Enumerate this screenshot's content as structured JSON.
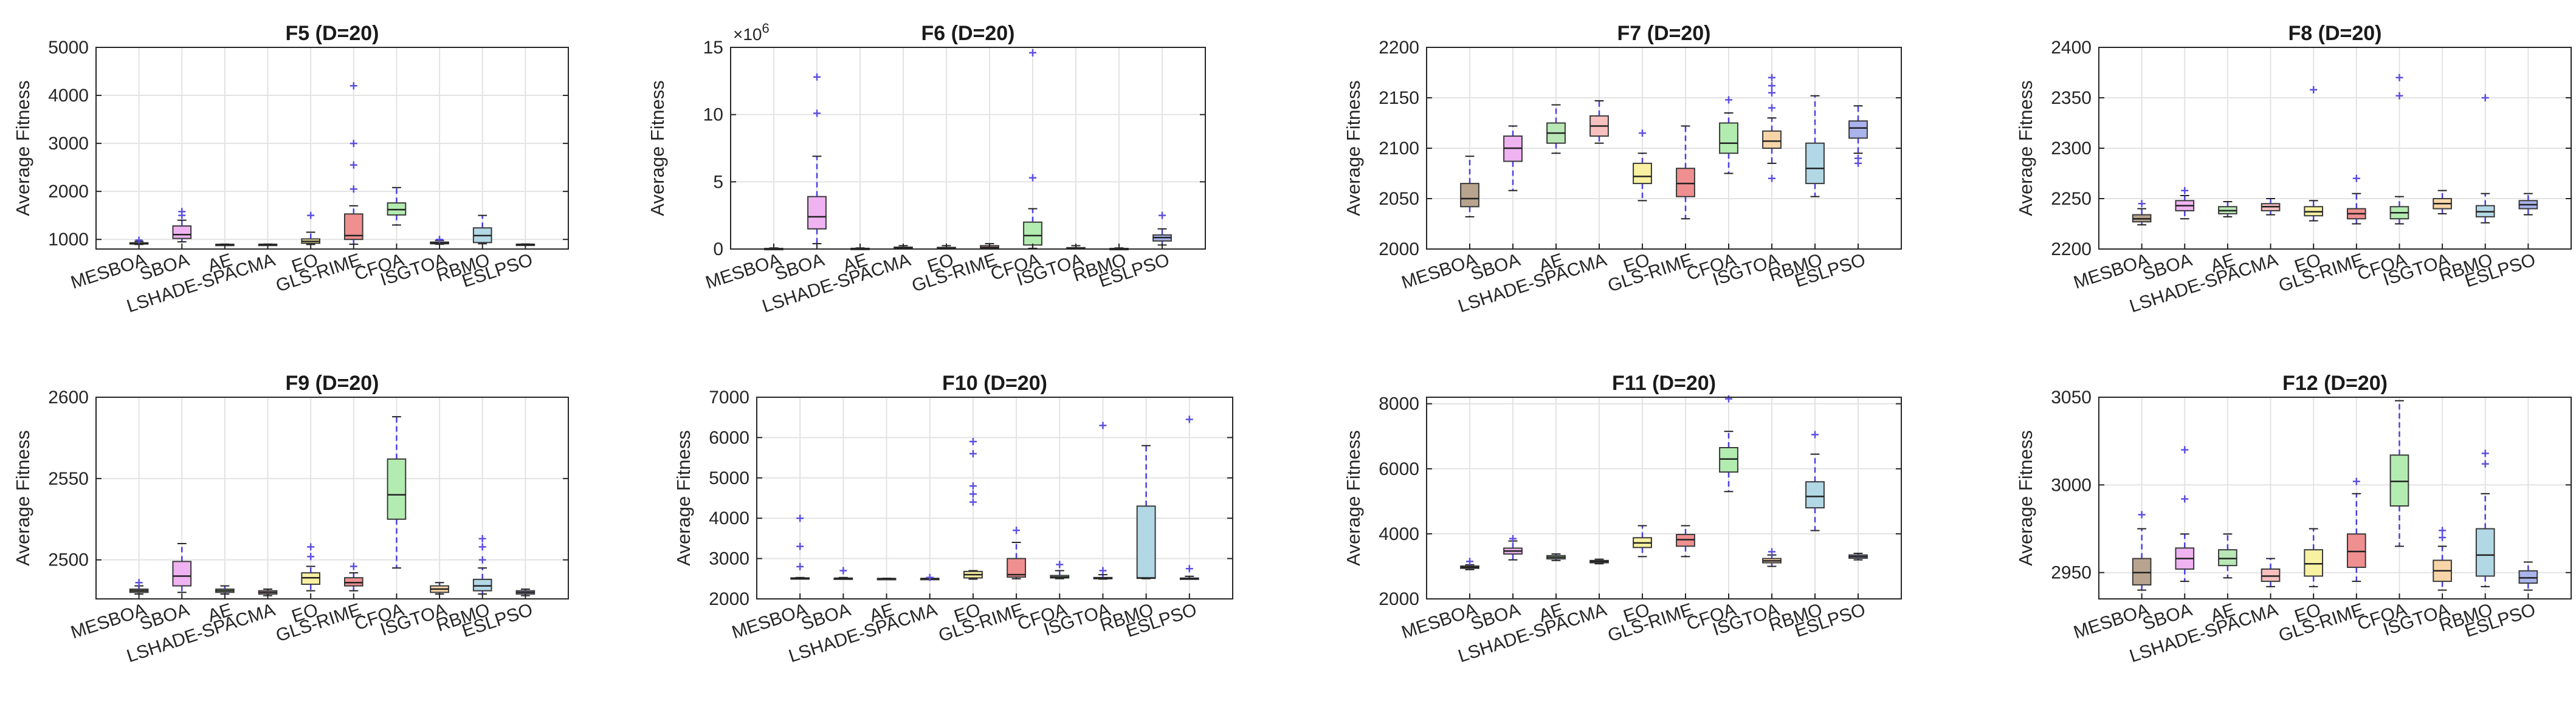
{
  "chart_data": [
    {
      "type": "box",
      "title": "F5 (D=20)",
      "ylabel": "Average Fitness",
      "categories": [
        "MESBOA",
        "SBOA",
        "AE",
        "LSHADE-SPACMA",
        "EO",
        "GLS-RIME",
        "CFOA",
        "ISGTOA",
        "RBMO",
        "ESLPSO"
      ],
      "ylim": [
        800,
        5000
      ],
      "yticks": [
        1000,
        2000,
        3000,
        4000,
        5000
      ],
      "ytick_labels": [
        "1000",
        "2000",
        "3000",
        "4000",
        "5000"
      ],
      "boxes": [
        {
          "q1": 905,
          "median": 915,
          "q3": 930,
          "lo": 895,
          "hi": 960,
          "out": [
            985
          ]
        },
        {
          "q1": 1020,
          "median": 1100,
          "q3": 1280,
          "lo": 950,
          "hi": 1400,
          "out": [
            1500,
            1580
          ]
        },
        {
          "q1": 890,
          "median": 893,
          "q3": 897,
          "lo": 888,
          "hi": 902,
          "out": []
        },
        {
          "q1": 892,
          "median": 895,
          "q3": 898,
          "lo": 890,
          "hi": 903,
          "out": []
        },
        {
          "q1": 920,
          "median": 960,
          "q3": 1010,
          "lo": 895,
          "hi": 1150,
          "out": [
            1500
          ]
        },
        {
          "q1": 1000,
          "median": 1080,
          "q3": 1530,
          "lo": 900,
          "hi": 1700,
          "out": [
            2050,
            2550,
            3000,
            4200
          ]
        },
        {
          "q1": 1510,
          "median": 1620,
          "q3": 1760,
          "lo": 1300,
          "hi": 2080,
          "out": []
        },
        {
          "q1": 910,
          "median": 925,
          "q3": 945,
          "lo": 900,
          "hi": 980,
          "out": [
            1000
          ]
        },
        {
          "q1": 935,
          "median": 1080,
          "q3": 1240,
          "lo": 910,
          "hi": 1500,
          "out": []
        },
        {
          "q1": 895,
          "median": 897,
          "q3": 900,
          "lo": 892,
          "hi": 905,
          "out": []
        }
      ]
    },
    {
      "type": "box",
      "title": "F6 (D=20)",
      "ylabel": "Average Fitness",
      "multiplier": "×10^6",
      "categories": [
        "MESBOA",
        "SBOA",
        "AE",
        "LSHADE-SPACMA",
        "EO",
        "GLS-RIME",
        "CFOA",
        "ISGTOA",
        "RBMO",
        "ESLPSO"
      ],
      "ylim": [
        0,
        15
      ],
      "yticks": [
        0,
        5,
        10,
        15
      ],
      "ytick_labels": [
        "0",
        "5",
        "10",
        "15"
      ],
      "boxes": [
        {
          "q1": 0.01,
          "median": 0.02,
          "q3": 0.04,
          "lo": 0.0,
          "hi": 0.08,
          "out": []
        },
        {
          "q1": 1.5,
          "median": 2.4,
          "q3": 3.9,
          "lo": 0.4,
          "hi": 6.9,
          "out": [
            10.1,
            12.8
          ]
        },
        {
          "q1": 0.02,
          "median": 0.03,
          "q3": 0.05,
          "lo": 0.0,
          "hi": 0.08,
          "out": []
        },
        {
          "q1": 0.04,
          "median": 0.08,
          "q3": 0.14,
          "lo": 0.0,
          "hi": 0.25,
          "out": []
        },
        {
          "q1": 0.03,
          "median": 0.06,
          "q3": 0.12,
          "lo": 0.0,
          "hi": 0.25,
          "out": []
        },
        {
          "q1": 0.05,
          "median": 0.12,
          "q3": 0.25,
          "lo": 0.0,
          "hi": 0.4,
          "out": []
        },
        {
          "q1": 0.3,
          "median": 1.0,
          "q3": 2.0,
          "lo": 0.05,
          "hi": 3.0,
          "out": [
            5.3,
            14.6
          ]
        },
        {
          "q1": 0.02,
          "median": 0.05,
          "q3": 0.1,
          "lo": 0.0,
          "hi": 0.25,
          "out": []
        },
        {
          "q1": 0.01,
          "median": 0.02,
          "q3": 0.04,
          "lo": 0.0,
          "hi": 0.08,
          "out": []
        },
        {
          "q1": 0.6,
          "median": 0.85,
          "q3": 1.05,
          "lo": 0.3,
          "hi": 1.5,
          "out": [
            2.5
          ]
        }
      ]
    },
    {
      "type": "box",
      "title": "F7 (D=20)",
      "ylabel": "Average Fitness",
      "categories": [
        "MESBOA",
        "SBOA",
        "AE",
        "LSHADE-SPACMA",
        "EO",
        "GLS-RIME",
        "CFOA",
        "ISGTOA",
        "RBMO",
        "ESLPSO"
      ],
      "ylim": [
        2000,
        2200
      ],
      "yticks": [
        2000,
        2050,
        2100,
        2150,
        2200
      ],
      "ytick_labels": [
        "2000",
        "2050",
        "2100",
        "2150",
        "2200"
      ],
      "boxes": [
        {
          "q1": 2042,
          "median": 2050,
          "q3": 2065,
          "lo": 2032,
          "hi": 2092,
          "out": []
        },
        {
          "q1": 2087,
          "median": 2100,
          "q3": 2112,
          "lo": 2058,
          "hi": 2122,
          "out": []
        },
        {
          "q1": 2105,
          "median": 2115,
          "q3": 2125,
          "lo": 2095,
          "hi": 2143,
          "out": []
        },
        {
          "q1": 2112,
          "median": 2122,
          "q3": 2132,
          "lo": 2105,
          "hi": 2147,
          "out": []
        },
        {
          "q1": 2065,
          "median": 2072,
          "q3": 2085,
          "lo": 2048,
          "hi": 2095,
          "out": [
            2115
          ]
        },
        {
          "q1": 2052,
          "median": 2065,
          "q3": 2080,
          "lo": 2030,
          "hi": 2122,
          "out": []
        },
        {
          "q1": 2095,
          "median": 2105,
          "q3": 2125,
          "lo": 2075,
          "hi": 2135,
          "out": [
            2148
          ]
        },
        {
          "q1": 2100,
          "median": 2107,
          "q3": 2117,
          "lo": 2085,
          "hi": 2130,
          "out": [
            2070,
            2140,
            2155,
            2162,
            2170
          ]
        },
        {
          "q1": 2065,
          "median": 2080,
          "q3": 2105,
          "lo": 2052,
          "hi": 2152,
          "out": []
        },
        {
          "q1": 2110,
          "median": 2120,
          "q3": 2127,
          "lo": 2095,
          "hi": 2142,
          "out": [
            2085,
            2090
          ]
        }
      ]
    },
    {
      "type": "box",
      "title": "F8 (D=20)",
      "ylabel": "Average Fitness",
      "categories": [
        "MESBOA",
        "SBOA",
        "AE",
        "LSHADE-SPACMA",
        "EO",
        "GLS-RIME",
        "CFOA",
        "ISGTOA",
        "RBMO",
        "ESLPSO"
      ],
      "ylim": [
        2200,
        2400
      ],
      "yticks": [
        2200,
        2250,
        2300,
        2350,
        2400
      ],
      "ytick_labels": [
        "2200",
        "2250",
        "2300",
        "2350",
        "2400"
      ],
      "boxes": [
        {
          "q1": 2227,
          "median": 2230,
          "q3": 2234,
          "lo": 2224,
          "hi": 2240,
          "out": [
            2245
          ]
        },
        {
          "q1": 2238,
          "median": 2243,
          "q3": 2248,
          "lo": 2230,
          "hi": 2253,
          "out": [
            2258
          ]
        },
        {
          "q1": 2235,
          "median": 2238,
          "q3": 2242,
          "lo": 2232,
          "hi": 2247,
          "out": []
        },
        {
          "q1": 2238,
          "median": 2242,
          "q3": 2245,
          "lo": 2234,
          "hi": 2250,
          "out": []
        },
        {
          "q1": 2233,
          "median": 2237,
          "q3": 2242,
          "lo": 2228,
          "hi": 2248,
          "out": [
            2358
          ]
        },
        {
          "q1": 2230,
          "median": 2235,
          "q3": 2240,
          "lo": 2225,
          "hi": 2255,
          "out": [
            2270
          ]
        },
        {
          "q1": 2230,
          "median": 2236,
          "q3": 2242,
          "lo": 2225,
          "hi": 2252,
          "out": [
            2352,
            2370
          ]
        },
        {
          "q1": 2240,
          "median": 2245,
          "q3": 2250,
          "lo": 2235,
          "hi": 2258,
          "out": []
        },
        {
          "q1": 2232,
          "median": 2237,
          "q3": 2243,
          "lo": 2226,
          "hi": 2255,
          "out": [
            2350
          ]
        },
        {
          "q1": 2240,
          "median": 2244,
          "q3": 2248,
          "lo": 2234,
          "hi": 2255,
          "out": []
        }
      ]
    },
    {
      "type": "box",
      "title": "F9 (D=20)",
      "ylabel": "Average Fitness",
      "categories": [
        "MESBOA",
        "SBOA",
        "AE",
        "LSHADE-SPACMA",
        "EO",
        "GLS-RIME",
        "CFOA",
        "ISGTOA",
        "RBMO",
        "ESLPSO"
      ],
      "ylim": [
        2476,
        2600
      ],
      "yticks": [
        2500,
        2550,
        2600
      ],
      "ytick_labels": [
        "2500",
        "2550",
        "2600"
      ],
      "boxes": [
        {
          "q1": 2480,
          "median": 2481,
          "q3": 2482,
          "lo": 2479,
          "hi": 2484,
          "out": [
            2486
          ]
        },
        {
          "q1": 2484,
          "median": 2490,
          "q3": 2499,
          "lo": 2480,
          "hi": 2510,
          "out": []
        },
        {
          "q1": 2480,
          "median": 2481,
          "q3": 2482,
          "lo": 2479,
          "hi": 2484,
          "out": []
        },
        {
          "q1": 2479,
          "median": 2480,
          "q3": 2481,
          "lo": 2478,
          "hi": 2482,
          "out": []
        },
        {
          "q1": 2485,
          "median": 2489,
          "q3": 2492,
          "lo": 2481,
          "hi": 2496,
          "out": [
            2502,
            2508
          ]
        },
        {
          "q1": 2484,
          "median": 2486,
          "q3": 2489,
          "lo": 2481,
          "hi": 2492,
          "out": [
            2496
          ]
        },
        {
          "q1": 2525,
          "median": 2540,
          "q3": 2562,
          "lo": 2495,
          "hi": 2588,
          "out": []
        },
        {
          "q1": 2480,
          "median": 2482,
          "q3": 2484,
          "lo": 2479,
          "hi": 2486,
          "out": []
        },
        {
          "q1": 2481,
          "median": 2484,
          "q3": 2488,
          "lo": 2479,
          "hi": 2495,
          "out": [
            2500,
            2508,
            2513
          ]
        },
        {
          "q1": 2479,
          "median": 2480,
          "q3": 2481,
          "lo": 2478,
          "hi": 2482,
          "out": []
        }
      ]
    },
    {
      "type": "box",
      "title": "F10 (D=20)",
      "ylabel": "Average Fitness",
      "categories": [
        "MESBOA",
        "SBOA",
        "AE",
        "LSHADE-SPACMA",
        "EO",
        "GLS-RIME",
        "CFOA",
        "ISGTOA",
        "RBMO",
        "ESLPSO"
      ],
      "ylim": [
        2000,
        7000
      ],
      "yticks": [
        2000,
        3000,
        4000,
        5000,
        6000,
        7000
      ],
      "ytick_labels": [
        "2000",
        "3000",
        "4000",
        "5000",
        "6000",
        "7000"
      ],
      "boxes": [
        {
          "q1": 2500,
          "median": 2510,
          "q3": 2520,
          "lo": 2490,
          "hi": 2530,
          "out": [
            2800,
            3300,
            4000
          ]
        },
        {
          "q1": 2500,
          "median": 2505,
          "q3": 2515,
          "lo": 2490,
          "hi": 2530,
          "out": [
            2700
          ]
        },
        {
          "q1": 2500,
          "median": 2502,
          "q3": 2505,
          "lo": 2495,
          "hi": 2510,
          "out": []
        },
        {
          "q1": 2500,
          "median": 2503,
          "q3": 2506,
          "lo": 2495,
          "hi": 2512,
          "out": [
            2530
          ]
        },
        {
          "q1": 2520,
          "median": 2600,
          "q3": 2680,
          "lo": 2490,
          "hi": 2700,
          "out": [
            4400,
            4600,
            4800,
            5600,
            5900
          ]
        },
        {
          "q1": 2540,
          "median": 2600,
          "q3": 3000,
          "lo": 2500,
          "hi": 3400,
          "out": [
            3700
          ]
        },
        {
          "q1": 2520,
          "median": 2540,
          "q3": 2580,
          "lo": 2500,
          "hi": 2700,
          "out": [
            2850
          ]
        },
        {
          "q1": 2500,
          "median": 2510,
          "q3": 2530,
          "lo": 2490,
          "hi": 2600,
          "out": [
            2700,
            6300
          ]
        },
        {
          "q1": 2510,
          "median": 2520,
          "q3": 4300,
          "lo": 2500,
          "hi": 5800,
          "out": []
        },
        {
          "q1": 2500,
          "median": 2505,
          "q3": 2515,
          "lo": 2490,
          "hi": 2560,
          "out": [
            2750,
            6450
          ]
        }
      ]
    },
    {
      "type": "box",
      "title": "F11 (D=20)",
      "ylabel": "Average Fitness",
      "categories": [
        "MESBOA",
        "SBOA",
        "AE",
        "LSHADE-SPACMA",
        "EO",
        "GLS-RIME",
        "CFOA",
        "ISGTOA",
        "RBMO",
        "ESLPSO"
      ],
      "ylim": [
        2000,
        8200
      ],
      "yticks": [
        2000,
        4000,
        6000,
        8000
      ],
      "ytick_labels": [
        "2000",
        "4000",
        "6000",
        "8000"
      ],
      "boxes": [
        {
          "q1": 2940,
          "median": 2970,
          "q3": 3010,
          "lo": 2900,
          "hi": 3050,
          "out": [
            3150
          ]
        },
        {
          "q1": 3380,
          "median": 3470,
          "q3": 3560,
          "lo": 3200,
          "hi": 3780,
          "out": [
            3850
          ]
        },
        {
          "q1": 3230,
          "median": 3280,
          "q3": 3330,
          "lo": 3180,
          "hi": 3380,
          "out": []
        },
        {
          "q1": 3110,
          "median": 3150,
          "q3": 3180,
          "lo": 3080,
          "hi": 3220,
          "out": []
        },
        {
          "q1": 3580,
          "median": 3720,
          "q3": 3880,
          "lo": 3300,
          "hi": 4250,
          "out": []
        },
        {
          "q1": 3620,
          "median": 3820,
          "q3": 3980,
          "lo": 3300,
          "hi": 4250,
          "out": []
        },
        {
          "q1": 5900,
          "median": 6300,
          "q3": 6650,
          "lo": 5300,
          "hi": 7150,
          "out": [
            8150
          ]
        },
        {
          "q1": 3110,
          "median": 3170,
          "q3": 3240,
          "lo": 3000,
          "hi": 3350,
          "out": [
            3450
          ]
        },
        {
          "q1": 4800,
          "median": 5150,
          "q3": 5600,
          "lo": 4100,
          "hi": 6450,
          "out": [
            7050
          ]
        },
        {
          "q1": 3250,
          "median": 3300,
          "q3": 3350,
          "lo": 3200,
          "hi": 3400,
          "out": []
        }
      ]
    },
    {
      "type": "box",
      "title": "F12 (D=20)",
      "ylabel": "Average Fitness",
      "categories": [
        "MESBOA",
        "SBOA",
        "AE",
        "LSHADE-SPACMA",
        "EO",
        "GLS-RIME",
        "CFOA",
        "ISGTOA",
        "RBMO",
        "ESLPSO"
      ],
      "ylim": [
        2935,
        3050
      ],
      "yticks": [
        2950,
        3000,
        3050
      ],
      "ytick_labels": [
        "2950",
        "3000",
        "3050"
      ],
      "boxes": [
        {
          "q1": 2943,
          "median": 2950,
          "q3": 2958,
          "lo": 2940,
          "hi": 2975,
          "out": [
            2983
          ]
        },
        {
          "q1": 2952,
          "median": 2958,
          "q3": 2964,
          "lo": 2945,
          "hi": 2972,
          "out": [
            2992,
            3020
          ]
        },
        {
          "q1": 2954,
          "median": 2958,
          "q3": 2963,
          "lo": 2947,
          "hi": 2972,
          "out": []
        },
        {
          "q1": 2945,
          "median": 2948,
          "q3": 2952,
          "lo": 2942,
          "hi": 2958,
          "out": []
        },
        {
          "q1": 2948,
          "median": 2955,
          "q3": 2963,
          "lo": 2942,
          "hi": 2975,
          "out": []
        },
        {
          "q1": 2953,
          "median": 2962,
          "q3": 2972,
          "lo": 2945,
          "hi": 2995,
          "out": [
            3002
          ]
        },
        {
          "q1": 2988,
          "median": 3002,
          "q3": 3017,
          "lo": 2965,
          "hi": 3048,
          "out": []
        },
        {
          "q1": 2945,
          "median": 2951,
          "q3": 2957,
          "lo": 2940,
          "hi": 2965,
          "out": [
            2970,
            2974
          ]
        },
        {
          "q1": 2948,
          "median": 2960,
          "q3": 2975,
          "lo": 2942,
          "hi": 2995,
          "out": [
            3012,
            3018
          ]
        },
        {
          "q1": 2944,
          "median": 2947,
          "q3": 2951,
          "lo": 2940,
          "hi": 2956,
          "out": []
        }
      ]
    }
  ],
  "box_colors": [
    "#b8a48e",
    "#f0b3f2",
    "#b9e8b6",
    "#f7c0be",
    "#f8f1a2",
    "#ef8f8f",
    "#b3ecb0",
    "#f8d5a8",
    "#b2d8e6",
    "#a9b3ec"
  ],
  "whisker_color": "#4a3fe0",
  "outlier_color": "#5b4fe3"
}
